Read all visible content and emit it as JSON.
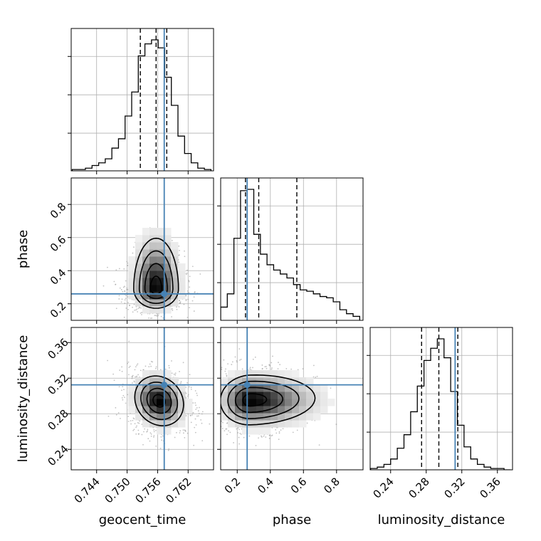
{
  "chart_data": {
    "type": "corner",
    "parameters": [
      {
        "name": "geocent_time",
        "label": "geocent_time",
        "range": [
          0.739,
          0.767
        ],
        "ticks": [
          0.744,
          0.75,
          0.756,
          0.762
        ],
        "tick_labels": [
          "0.744",
          "0.750",
          "0.756",
          "0.762"
        ],
        "truth": 0.7573,
        "quantiles": [
          0.7526,
          0.7557,
          0.7578
        ]
      },
      {
        "name": "phase",
        "label": "phase",
        "range": [
          0.1,
          0.96
        ],
        "ticks": [
          0.2,
          0.4,
          0.6,
          0.8
        ],
        "tick_labels": [
          "0.2",
          "0.4",
          "0.6",
          "0.8"
        ],
        "truth": 0.26,
        "quantiles": [
          0.25,
          0.33,
          0.56
        ]
      },
      {
        "name": "luminosity_distance",
        "label": "luminosity_distance",
        "range": [
          0.217,
          0.377
        ],
        "ticks": [
          0.24,
          0.28,
          0.32,
          0.36
        ],
        "tick_labels": [
          "0.24",
          "0.28",
          "0.32",
          "0.36"
        ],
        "truth": 0.3125,
        "quantiles": [
          0.2748,
          0.2942,
          0.3155
        ]
      }
    ],
    "histograms": {
      "geocent_time": {
        "bin_edges": [
          0.7392,
          0.7405,
          0.7418,
          0.7431,
          0.7444,
          0.7457,
          0.747,
          0.7483,
          0.7496,
          0.7509,
          0.7522,
          0.7535,
          0.7548,
          0.7561,
          0.7574,
          0.7587,
          0.76,
          0.7613,
          0.7626,
          0.7639,
          0.7652,
          0.7665
        ],
        "counts": [
          0.01,
          0.01,
          0.02,
          0.04,
          0.06,
          0.09,
          0.17,
          0.24,
          0.41,
          0.59,
          0.86,
          0.95,
          0.98,
          0.92,
          0.7,
          0.49,
          0.26,
          0.13,
          0.06,
          0.02,
          0.01
        ]
      },
      "phase": {
        "bin_edges": [
          0.1,
          0.14,
          0.18,
          0.22,
          0.26,
          0.3,
          0.34,
          0.38,
          0.42,
          0.46,
          0.5,
          0.54,
          0.58,
          0.62,
          0.66,
          0.7,
          0.74,
          0.78,
          0.82,
          0.86,
          0.9,
          0.94
        ],
        "counts": [
          0.1,
          0.2,
          0.62,
          0.98,
          0.99,
          0.65,
          0.5,
          0.42,
          0.38,
          0.35,
          0.32,
          0.27,
          0.23,
          0.22,
          0.2,
          0.18,
          0.17,
          0.14,
          0.08,
          0.05,
          0.03
        ]
      },
      "luminosity_distance": {
        "bin_edges": [
          0.2175,
          0.225,
          0.2325,
          0.24,
          0.2475,
          0.255,
          0.2625,
          0.27,
          0.2775,
          0.285,
          0.2925,
          0.3,
          0.3075,
          0.315,
          0.3225,
          0.33,
          0.3375,
          0.345,
          0.3525,
          0.36,
          0.3675,
          0.375
        ],
        "counts": [
          0.01,
          0.02,
          0.04,
          0.08,
          0.16,
          0.26,
          0.43,
          0.62,
          0.81,
          0.9,
          0.97,
          0.83,
          0.58,
          0.33,
          0.17,
          0.08,
          0.04,
          0.02,
          0.01,
          0.01,
          0.0
        ]
      }
    },
    "joint_2d": [
      {
        "x": "geocent_time",
        "y": "phase",
        "mean": [
          0.7557,
          0.29
        ],
        "std": [
          0.0022,
          0.09
        ],
        "corr": 0.0
      },
      {
        "x": "geocent_time",
        "y": "luminosity_distance",
        "mean": [
          0.7563,
          0.2945
        ],
        "std": [
          0.0024,
          0.014
        ],
        "corr": -0.15
      },
      {
        "x": "phase",
        "y": "luminosity_distance",
        "mean": [
          0.28,
          0.2955
        ],
        "std": [
          0.13,
          0.014
        ],
        "corr": 0.05
      }
    ],
    "truth_color": "#4682b4",
    "contour_color": "#000000",
    "quantile_linestyle": "dashed",
    "grid": true
  }
}
